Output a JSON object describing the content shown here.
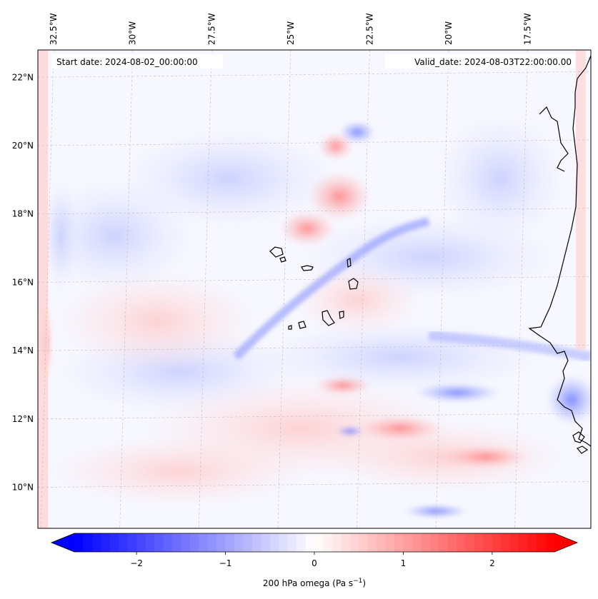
{
  "header": {
    "start_date": "Start date: 2024-08-02_00:00:00",
    "valid_date": "Valid_date: 2024-08-03T22:00:00.00"
  },
  "map": {
    "lon_range": [
      -33.0,
      -15.5
    ],
    "lat_range": [
      8.8,
      22.8
    ],
    "lon_ticks": [
      {
        "value": -32.5,
        "label": "32.5°W"
      },
      {
        "value": -30.0,
        "label": "30°W"
      },
      {
        "value": -27.5,
        "label": "27.5°W"
      },
      {
        "value": -25.0,
        "label": "25°W"
      },
      {
        "value": -22.5,
        "label": "22.5°W"
      },
      {
        "value": -20.0,
        "label": "20°W"
      },
      {
        "value": -17.5,
        "label": "17.5°W"
      }
    ],
    "lat_ticks": [
      {
        "value": 10,
        "label": "10°N"
      },
      {
        "value": 12,
        "label": "12°N"
      },
      {
        "value": 14,
        "label": "14°N"
      },
      {
        "value": 16,
        "label": "16°N"
      },
      {
        "value": 18,
        "label": "18°N"
      },
      {
        "value": 20,
        "label": "20°N"
      },
      {
        "value": 22,
        "label": "22°N"
      }
    ],
    "gridlines": true,
    "coastline_color": "#000000",
    "field": "200 hPa omega",
    "colormap": "bwr"
  },
  "colorbar": {
    "vmin": -2.7,
    "vmax": 2.7,
    "extend": "both",
    "ticks": [
      {
        "value": -2,
        "label": "−2"
      },
      {
        "value": -1,
        "label": "−1"
      },
      {
        "value": 0,
        "label": "0"
      },
      {
        "value": 1,
        "label": "1"
      },
      {
        "value": 2,
        "label": "2"
      }
    ],
    "label": "200 hPa omega (Pa s",
    "label_sup": "−1",
    "label_end": ")",
    "colors": {
      "low": "#0000ff",
      "mid": "#ffffff",
      "high": "#ff0000"
    }
  }
}
